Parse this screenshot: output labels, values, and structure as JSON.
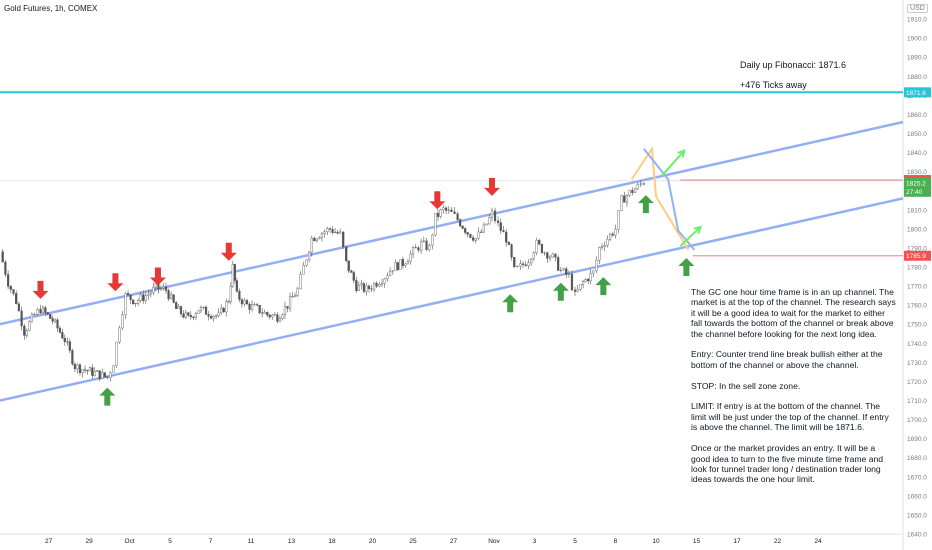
{
  "header": {
    "symbol_title": "Gold Futures, 1h, COMEX",
    "currency": "USD"
  },
  "annotations": {
    "fib_label": "Daily up Fibonacci: 1871.6",
    "ticks_label": "+476 Ticks away",
    "analysis": "The GC one hour time frame is in an up channel. The market is at the top of the channel. The research says it will be a good idea to wait for the market to either fall towards the bottom of the channel or break above the channel before looking for the next long idea.\n\nEntry: Counter trend line break bullish either at the bottom of the channel or above the channel.\n\nSTOP: In the sell zone zone.\n\nLIMIT: If entry is at the bottom of the channel. The limit will be just under the top of the channel. If entry is above the channel. The limit will be 1871.6.\n\nOnce or the market provides an entry. It will be a good idea to turn to the five minute time frame and look for tunnel trader long / destination trader long ideas towards the one hour limit."
  },
  "colors": {
    "channel": "#93aef5",
    "fib_line": "#26c6da",
    "stop_line": "#ef9a9a",
    "candle": "#555555",
    "up_arrow": "#43a047",
    "down_arrow": "#e53935",
    "path_orange": "#ffcc80",
    "path_blue": "#90b4f0",
    "path_green": "#69f06a",
    "price_red": "#ef5350",
    "price_green": "#4caf50"
  },
  "chart_data": {
    "type": "candlestick",
    "title": "Gold Futures, 1h, COMEX",
    "ylim": [
      1640,
      1920
    ],
    "y_ticks": [
      "1910.0",
      "1900.0",
      "1890.0",
      "1880.0",
      "1870.0",
      "1860.0",
      "1850.0",
      "1840.0",
      "1830.0",
      "1820.0",
      "1810.0",
      "1800.0",
      "1790.0",
      "1780.0",
      "1770.0",
      "1760.0",
      "1750.0",
      "1740.0",
      "1730.0",
      "1720.0",
      "1710.0",
      "1700.0",
      "1690.0",
      "1680.0",
      "1670.0",
      "1660.0",
      "1650.0",
      "1640.0"
    ],
    "y_tick_values": [
      1910,
      1900,
      1890,
      1880,
      1870,
      1860,
      1850,
      1840,
      1830,
      1820,
      1810,
      1800,
      1790,
      1780,
      1770,
      1760,
      1750,
      1740,
      1730,
      1720,
      1710,
      1700,
      1690,
      1680,
      1670,
      1660,
      1650,
      1640
    ],
    "x_ticks": [
      "27",
      "29",
      "Oct",
      "5",
      "7",
      "11",
      "13",
      "18",
      "20",
      "25",
      "27",
      "Nov",
      "3",
      "5",
      "8",
      "10",
      "15",
      "17",
      "22",
      "24"
    ],
    "x_tick_pos": [
      0.4,
      2.4,
      4.4,
      6.4,
      8.4,
      10.4,
      12.4,
      14.4,
      16.4,
      18.4,
      20.4,
      22.4,
      24.4,
      26.4,
      28.4,
      30.4,
      32.4,
      34.4,
      36.4,
      38.4
    ],
    "x_range": [
      -2,
      42.6
    ],
    "price_levels": [
      {
        "label": "1871.6",
        "value": 1871.6,
        "kind": "fib"
      },
      {
        "label": "1825.6",
        "value": 1825.6,
        "kind": "stop_upper"
      },
      {
        "label": "1785.9",
        "value": 1785.9,
        "kind": "stop_lower"
      }
    ],
    "last_price": {
      "label": "1825.2",
      "value": 1825.2,
      "countdown": "27:40"
    },
    "channel": {
      "upper": [
        {
          "x": -2,
          "y": 1750
        },
        {
          "x": 42.6,
          "y": 1856
        }
      ],
      "lower": [
        {
          "x": -2,
          "y": 1710
        },
        {
          "x": 42.6,
          "y": 1816
        }
      ]
    },
    "projection_orange": [
      {
        "x": 29.2,
        "y": 1826
      },
      {
        "x": 30.2,
        "y": 1842
      },
      {
        "x": 30.4,
        "y": 1817
      },
      {
        "x": 32,
        "y": 1789
      }
    ],
    "projection_blue": [
      {
        "x": 29.8,
        "y": 1842
      },
      {
        "x": 31,
        "y": 1826
      },
      {
        "x": 31.5,
        "y": 1799
      },
      {
        "x": 32.3,
        "y": 1789
      }
    ],
    "projection_green": [
      {
        "x": 30.7,
        "y": 1828
      },
      {
        "x": 31.8,
        "y": 1841
      },
      {
        "x": 31.6,
        "y": 1791
      },
      {
        "x": 32.6,
        "y": 1801
      }
    ],
    "down_arrows": [
      {
        "x": 0,
        "y": 1768
      },
      {
        "x": 3.7,
        "y": 1772
      },
      {
        "x": 5.8,
        "y": 1775
      },
      {
        "x": 9.3,
        "y": 1788
      },
      {
        "x": 19.6,
        "y": 1815
      },
      {
        "x": 22.3,
        "y": 1822
      }
    ],
    "up_arrows": [
      {
        "x": 3.3,
        "y": 1712
      },
      {
        "x": 23.2,
        "y": 1761
      },
      {
        "x": 25.7,
        "y": 1767
      },
      {
        "x": 27.8,
        "y": 1770
      },
      {
        "x": 29.9,
        "y": 1813
      },
      {
        "x": 31.9,
        "y": 1780
      }
    ],
    "price_path": [
      [
        -2,
        1788
      ],
      [
        -1.6,
        1772
      ],
      [
        -1.2,
        1762
      ],
      [
        -0.8,
        1746
      ],
      [
        -0.3,
        1755
      ],
      [
        0,
        1758
      ],
      [
        0.6,
        1752
      ],
      [
        1.2,
        1742
      ],
      [
        1.7,
        1728
      ],
      [
        2.2,
        1726
      ],
      [
        2.8,
        1724
      ],
      [
        3.3,
        1722
      ],
      [
        3.6,
        1730
      ],
      [
        3.9,
        1750
      ],
      [
        4.2,
        1765
      ],
      [
        4.7,
        1762
      ],
      [
        5.2,
        1765
      ],
      [
        5.7,
        1769
      ],
      [
        6.2,
        1768
      ],
      [
        6.7,
        1758
      ],
      [
        7.3,
        1753
      ],
      [
        7.8,
        1758
      ],
      [
        8.3,
        1756
      ],
      [
        8.8,
        1754
      ],
      [
        9.3,
        1763
      ],
      [
        9.5,
        1780
      ],
      [
        9.7,
        1765
      ],
      [
        10.2,
        1760
      ],
      [
        10.7,
        1758
      ],
      [
        11.2,
        1755
      ],
      [
        11.7,
        1754
      ],
      [
        12.2,
        1760
      ],
      [
        12.7,
        1768
      ],
      [
        13.0,
        1780
      ],
      [
        13.4,
        1795
      ],
      [
        13.9,
        1798
      ],
      [
        14.3,
        1800
      ],
      [
        14.8,
        1797
      ],
      [
        15.1,
        1782
      ],
      [
        15.6,
        1770
      ],
      [
        16.1,
        1768
      ],
      [
        16.6,
        1772
      ],
      [
        17.0,
        1775
      ],
      [
        17.4,
        1780
      ],
      [
        17.9,
        1782
      ],
      [
        18.4,
        1788
      ],
      [
        18.8,
        1792
      ],
      [
        19.2,
        1790
      ],
      [
        19.5,
        1806
      ],
      [
        19.9,
        1810
      ],
      [
        20.3,
        1808
      ],
      [
        20.6,
        1805
      ],
      [
        21.1,
        1798
      ],
      [
        21.5,
        1795
      ],
      [
        21.9,
        1800
      ],
      [
        22.3,
        1808
      ],
      [
        22.6,
        1802
      ],
      [
        23.0,
        1795
      ],
      [
        23.4,
        1778
      ],
      [
        23.7,
        1780
      ],
      [
        24.1,
        1784
      ],
      [
        24.5,
        1792
      ],
      [
        24.9,
        1788
      ],
      [
        25.3,
        1785
      ],
      [
        25.7,
        1778
      ],
      [
        26.1,
        1775
      ],
      [
        26.4,
        1765
      ],
      [
        26.8,
        1772
      ],
      [
        27.3,
        1777
      ],
      [
        27.6,
        1790
      ],
      [
        28.0,
        1795
      ],
      [
        28.4,
        1800
      ],
      [
        28.7,
        1815
      ],
      [
        29.1,
        1819
      ],
      [
        29.5,
        1822
      ],
      [
        29.8,
        1825
      ]
    ]
  }
}
